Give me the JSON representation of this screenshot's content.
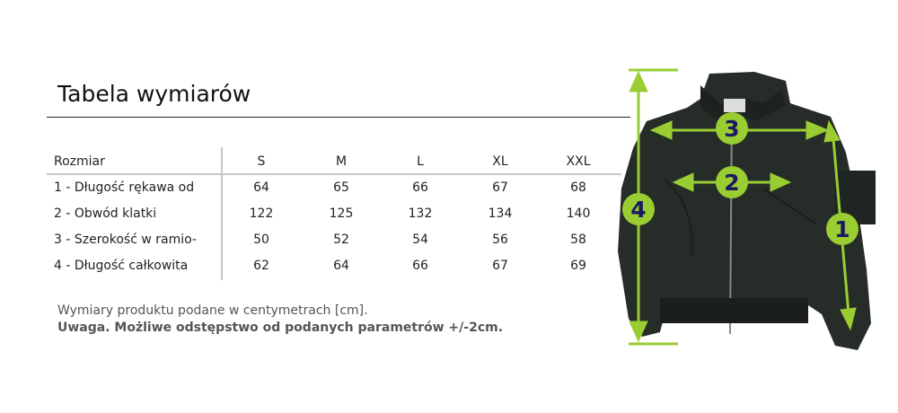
{
  "title": "Tabela wymiarów",
  "table": {
    "header": [
      "Rozmiar",
      "S",
      "M",
      "L",
      "XL",
      "XXL"
    ],
    "rows": [
      [
        "1 - Długość rękawa od",
        "64",
        "65",
        "66",
        "67",
        "68"
      ],
      [
        "2 - Obwód klatki",
        "122",
        "125",
        "132",
        "134",
        "140"
      ],
      [
        "3 - Szerokość w ramio-",
        "50",
        "52",
        "54",
        "56",
        "58"
      ],
      [
        "4 - Długość całkowita",
        "62",
        "64",
        "66",
        "67",
        "69"
      ]
    ]
  },
  "notes": {
    "units": "Wymiary produktu podane w centymetrach [cm].",
    "warning": "Uwaga. Możliwe odstępstwo od podanych parametrów +/-2cm."
  },
  "diagram": {
    "markers": [
      "1",
      "2",
      "3",
      "4"
    ],
    "accent_color": "#9acd32",
    "marker_text_color": "#1a1a5e",
    "jacket_color": "#262d29"
  }
}
